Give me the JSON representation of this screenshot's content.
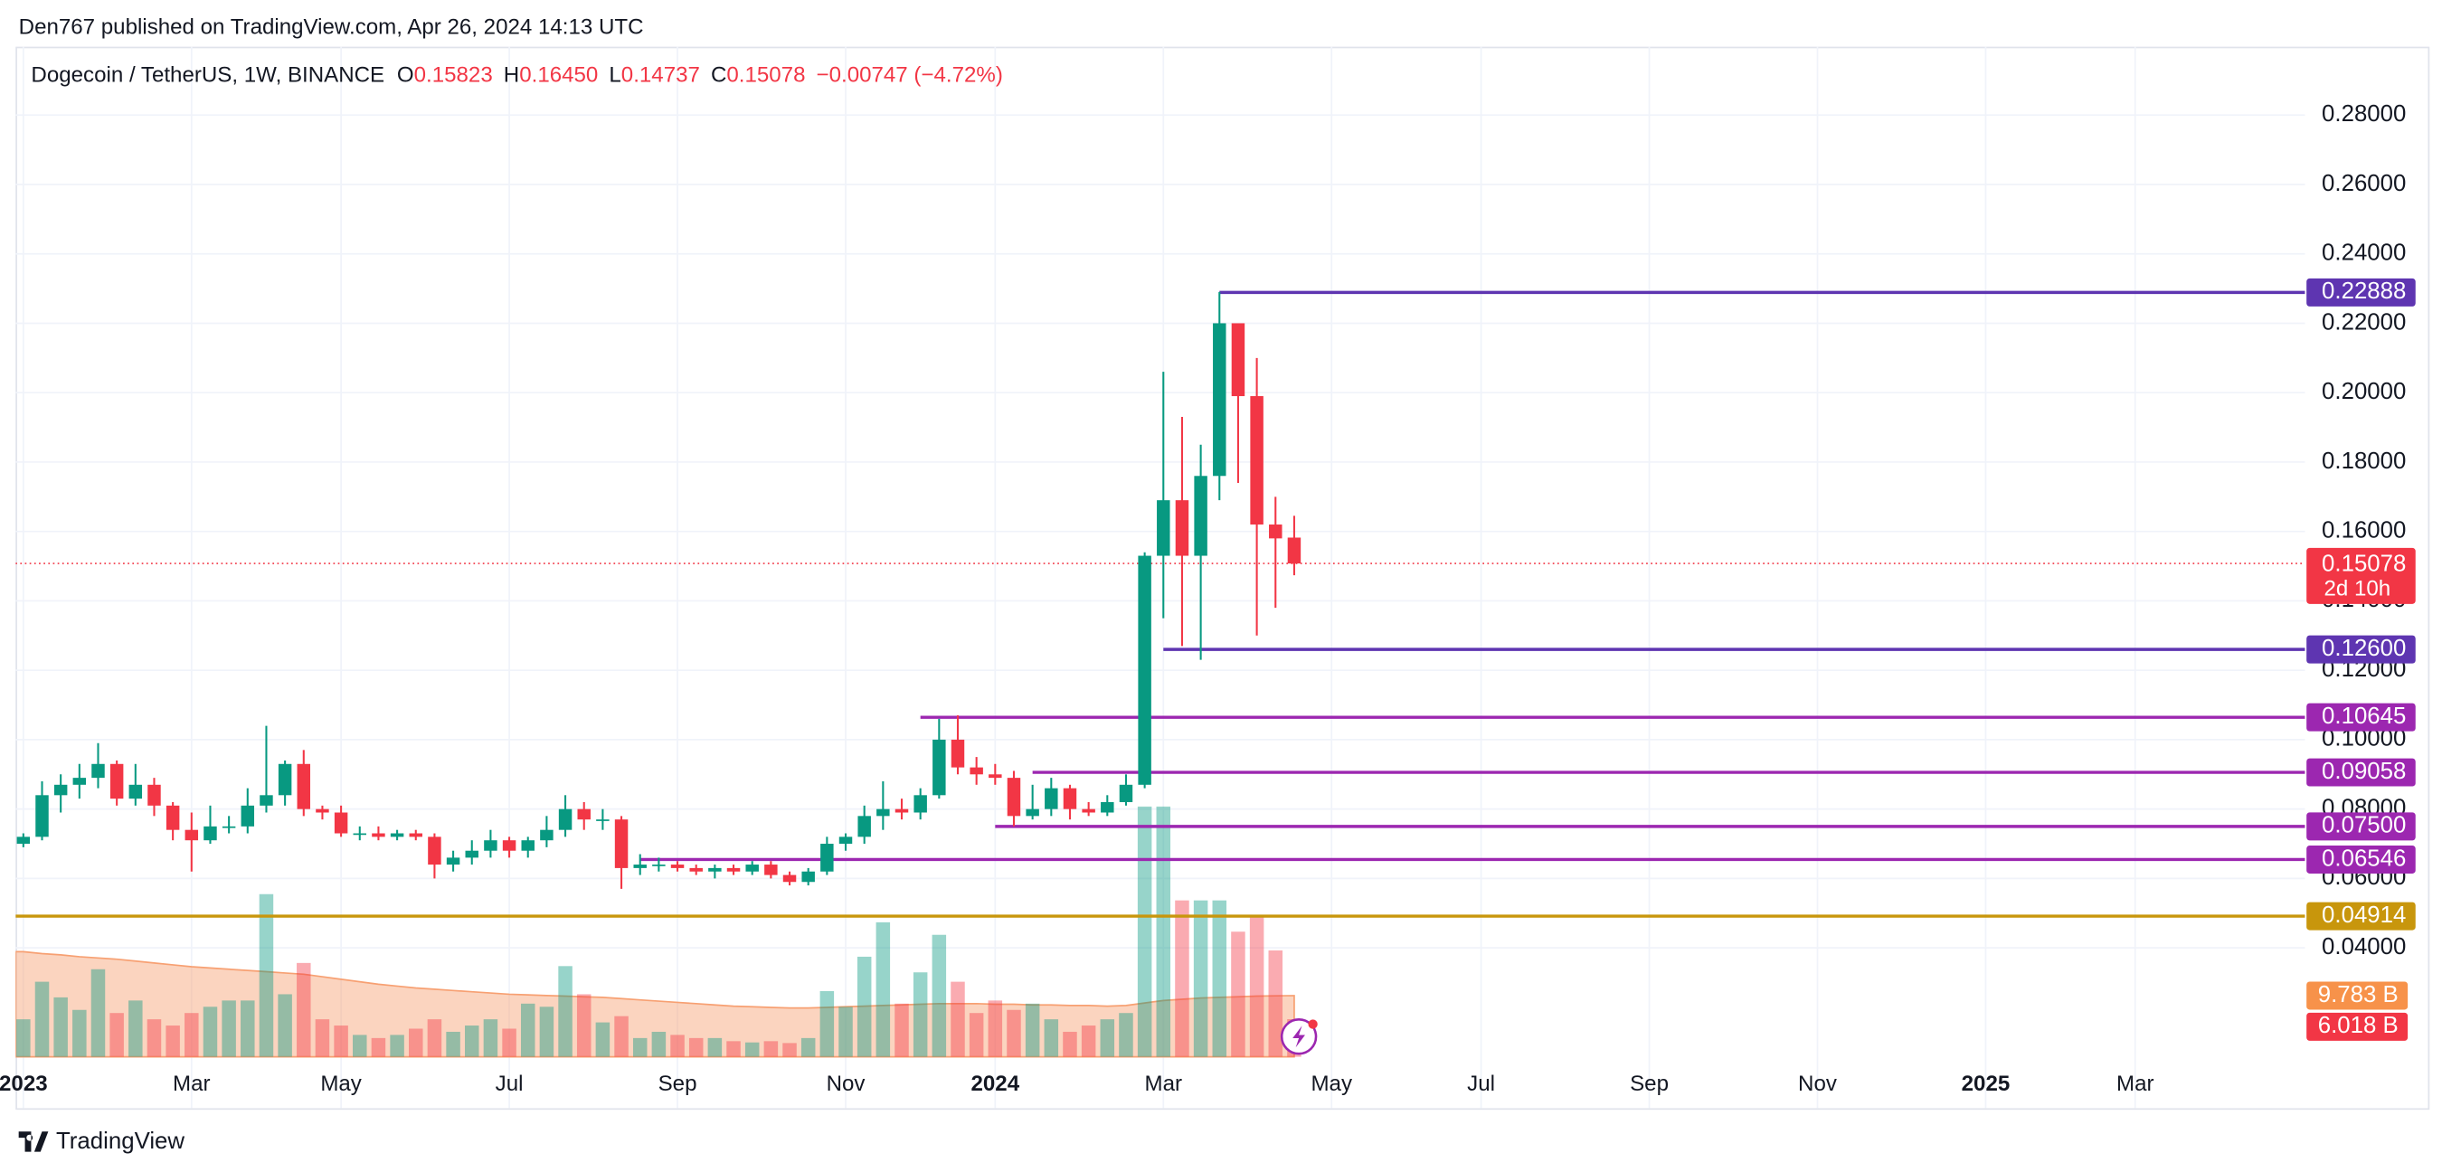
{
  "page": {
    "published": "Den767 published on TradingView.com, Apr 26, 2024 14:13 UTC",
    "brand": "TradingView"
  },
  "chart_data": {
    "type": "candlestick",
    "symbol": "Dogecoin / TetherUS, 1W, BINANCE",
    "ohlc": [
      {
        "key": "O",
        "value": "0.15823"
      },
      {
        "key": "H",
        "value": "0.16450"
      },
      {
        "key": "L",
        "value": "0.14737"
      },
      {
        "key": "C",
        "value": "0.15078"
      }
    ],
    "change": "−0.00747 (−4.72%)",
    "up_color": "#089981",
    "down_color": "#f23645",
    "categories": [
      "2023",
      null,
      null,
      null,
      null,
      null,
      null,
      null,
      null,
      "Mar",
      null,
      null,
      null,
      null,
      null,
      null,
      null,
      "May",
      null,
      null,
      null,
      null,
      null,
      null,
      null,
      null,
      "Jul",
      null,
      null,
      null,
      null,
      null,
      null,
      null,
      null,
      "Sep",
      null,
      null,
      null,
      null,
      null,
      null,
      null,
      null,
      "Nov",
      null,
      null,
      null,
      null,
      null,
      null,
      null,
      "2024",
      null,
      null,
      null,
      null,
      null,
      null,
      null,
      null,
      "Mar",
      null,
      null,
      null,
      null,
      null,
      null,
      null,
      null,
      "May",
      null,
      null,
      null,
      null,
      null,
      null,
      null,
      "Jul",
      null,
      null,
      null,
      null,
      null,
      null,
      null,
      null,
      "Sep",
      null,
      null,
      null,
      null,
      null,
      null,
      null,
      null,
      "Nov",
      null,
      null,
      null,
      null,
      null,
      null,
      null,
      null,
      "2025",
      null,
      null,
      null,
      null,
      null,
      null,
      null,
      "Mar",
      null,
      null,
      null,
      null,
      null
    ],
    "open": [
      0.07,
      0.072,
      0.084,
      0.087,
      0.089,
      0.093,
      0.083,
      0.087,
      0.081,
      0.074,
      0.071,
      0.075,
      0.075,
      0.081,
      0.084,
      0.093,
      0.08,
      0.079,
      0.073,
      0.073,
      0.072,
      0.073,
      0.072,
      0.064,
      0.066,
      0.068,
      0.071,
      0.068,
      0.071,
      0.074,
      0.08,
      0.077,
      0.077,
      0.063,
      0.064,
      0.064,
      0.063,
      0.062,
      0.063,
      0.062,
      0.064,
      0.061,
      0.059,
      0.062,
      0.07,
      0.072,
      0.078,
      0.08,
      0.079,
      0.084,
      0.1,
      0.092,
      0.09,
      0.089,
      0.078,
      0.08,
      0.086,
      0.08,
      0.079,
      0.082,
      0.087,
      0.153,
      0.169,
      0.153,
      0.176,
      0.22,
      0.199,
      0.162,
      0.15823,
      null,
      null,
      null,
      null,
      null,
      null,
      null,
      null,
      null,
      null,
      null,
      null,
      null,
      null,
      null,
      null,
      null,
      null,
      null,
      null,
      null,
      null,
      null,
      null,
      null,
      null,
      null,
      null,
      null,
      null,
      null,
      null,
      null,
      null,
      null,
      null,
      null,
      null,
      null,
      null,
      null,
      null,
      null,
      null,
      null,
      null,
      null,
      null,
      null,
      null
    ],
    "high": [
      0.073,
      0.088,
      0.09,
      0.093,
      0.099,
      0.094,
      0.093,
      0.089,
      0.082,
      0.079,
      0.081,
      0.078,
      0.086,
      0.104,
      0.094,
      0.097,
      0.081,
      0.081,
      0.075,
      0.075,
      0.074,
      0.074,
      0.073,
      0.068,
      0.071,
      0.074,
      0.072,
      0.072,
      0.078,
      0.084,
      0.082,
      0.08,
      0.078,
      0.067,
      0.066,
      0.065,
      0.064,
      0.064,
      0.064,
      0.065,
      0.065,
      0.062,
      0.063,
      0.072,
      0.073,
      0.081,
      0.088,
      0.083,
      0.086,
      0.106,
      0.107,
      0.095,
      0.093,
      0.091,
      0.087,
      0.089,
      0.087,
      0.082,
      0.084,
      0.09,
      0.154,
      0.206,
      0.193,
      0.185,
      0.229,
      0.22,
      0.21,
      0.17,
      0.1645,
      null,
      null,
      null,
      null,
      null,
      null,
      null,
      null,
      null,
      null,
      null,
      null,
      null,
      null,
      null,
      null,
      null,
      null,
      null,
      null,
      null,
      null,
      null,
      null,
      null,
      null,
      null,
      null,
      null,
      null,
      null,
      null,
      null,
      null,
      null,
      null,
      null,
      null,
      null,
      null,
      null,
      null,
      null,
      null,
      null,
      null,
      null,
      null,
      null,
      null
    ],
    "low": [
      0.069,
      0.071,
      0.079,
      0.083,
      0.086,
      0.081,
      0.081,
      0.078,
      0.071,
      0.062,
      0.07,
      0.073,
      0.073,
      0.079,
      0.081,
      0.078,
      0.077,
      0.072,
      0.071,
      0.071,
      0.071,
      0.071,
      0.06,
      0.062,
      0.064,
      0.066,
      0.066,
      0.066,
      0.069,
      0.072,
      0.074,
      0.074,
      0.057,
      0.061,
      0.062,
      0.062,
      0.061,
      0.06,
      0.061,
      0.061,
      0.06,
      0.058,
      0.058,
      0.061,
      0.068,
      0.07,
      0.074,
      0.077,
      0.077,
      0.083,
      0.09,
      0.087,
      0.087,
      0.075,
      0.077,
      0.078,
      0.077,
      0.078,
      0.078,
      0.081,
      0.086,
      0.135,
      0.127,
      0.123,
      0.169,
      0.174,
      0.13,
      0.138,
      0.14737,
      null,
      null,
      null,
      null,
      null,
      null,
      null,
      null,
      null,
      null,
      null,
      null,
      null,
      null,
      null,
      null,
      null,
      null,
      null,
      null,
      null,
      null,
      null,
      null,
      null,
      null,
      null,
      null,
      null,
      null,
      null,
      null,
      null,
      null,
      null,
      null,
      null,
      null,
      null,
      null,
      null,
      null,
      null,
      null,
      null,
      null,
      null,
      null,
      null,
      null
    ],
    "close": [
      0.072,
      0.084,
      0.087,
      0.089,
      0.093,
      0.083,
      0.087,
      0.081,
      0.074,
      0.071,
      0.075,
      0.075,
      0.081,
      0.084,
      0.093,
      0.08,
      0.079,
      0.073,
      0.073,
      0.072,
      0.073,
      0.072,
      0.064,
      0.066,
      0.068,
      0.071,
      0.068,
      0.071,
      0.074,
      0.08,
      0.077,
      0.077,
      0.063,
      0.064,
      0.064,
      0.063,
      0.062,
      0.063,
      0.062,
      0.064,
      0.061,
      0.059,
      0.062,
      0.07,
      0.072,
      0.078,
      0.08,
      0.079,
      0.084,
      0.1,
      0.092,
      0.09,
      0.089,
      0.078,
      0.08,
      0.086,
      0.08,
      0.079,
      0.082,
      0.087,
      0.153,
      0.169,
      0.153,
      0.176,
      0.22,
      0.199,
      0.162,
      0.158,
      0.15078,
      null,
      null,
      null,
      null,
      null,
      null,
      null,
      null,
      null,
      null,
      null,
      null,
      null,
      null,
      null,
      null,
      null,
      null,
      null,
      null,
      null,
      null,
      null,
      null,
      null,
      null,
      null,
      null,
      null,
      null,
      null,
      null,
      null,
      null,
      null,
      null,
      null,
      null,
      null,
      null,
      null,
      null,
      null,
      null,
      null,
      null,
      null,
      null,
      null,
      null
    ],
    "volume": [
      6,
      12,
      9.5,
      7.5,
      14,
      7,
      9,
      6,
      5,
      7,
      8,
      9,
      9,
      26,
      10,
      15,
      6,
      5,
      3.5,
      3,
      3.5,
      4.5,
      6,
      4,
      5,
      6,
      4.5,
      8.5,
      8,
      14.5,
      10,
      5.5,
      6.5,
      3,
      4,
      3.5,
      3,
      3,
      2.5,
      2.3,
      2.5,
      2.2,
      3,
      10.5,
      8,
      16,
      21.5,
      8.5,
      13.5,
      19.5,
      12,
      7,
      9,
      7.5,
      8.5,
      6,
      4,
      5,
      6,
      7,
      40,
      40,
      25,
      25,
      25,
      20,
      22.5,
      17,
      6.018,
      null,
      null,
      null,
      null,
      null,
      null,
      null,
      null,
      null,
      null,
      null,
      null,
      null,
      null,
      null,
      null,
      null,
      null,
      null,
      null,
      null,
      null,
      null,
      null,
      null,
      null,
      null,
      null,
      null,
      null,
      null,
      null,
      null,
      null,
      null,
      null,
      null,
      null,
      null,
      null,
      null,
      null,
      null,
      null,
      null,
      null,
      null,
      null,
      null,
      null
    ],
    "volume_ma": [
      16.8,
      16.5,
      16.3,
      16.0,
      15.8,
      15.6,
      15.3,
      15.0,
      14.7,
      14.4,
      14.2,
      14.0,
      13.8,
      13.6,
      13.4,
      13.2,
      12.8,
      12.4,
      12.0,
      11.6,
      11.3,
      11.0,
      10.8,
      10.6,
      10.4,
      10.2,
      10.0,
      9.9,
      9.8,
      9.7,
      9.6,
      9.5,
      9.3,
      9.1,
      8.9,
      8.7,
      8.5,
      8.3,
      8.1,
      8.0,
      7.9,
      7.8,
      7.8,
      7.9,
      8.0,
      8.1,
      8.2,
      8.3,
      8.4,
      8.5,
      8.5,
      8.5,
      8.4,
      8.4,
      8.3,
      8.3,
      8.2,
      8.2,
      8.1,
      8.2,
      8.6,
      9.0,
      9.2,
      9.4,
      9.5,
      9.6,
      9.7,
      9.75,
      9.783,
      null,
      null,
      null,
      null,
      null,
      null,
      null,
      null,
      null,
      null,
      null,
      null,
      null,
      null,
      null,
      null,
      null,
      null,
      null,
      null,
      null,
      null,
      null,
      null,
      null,
      null,
      null,
      null,
      null,
      null,
      null,
      null,
      null,
      null,
      null,
      null,
      null,
      null,
      null,
      null,
      null,
      null,
      null,
      null,
      null,
      null,
      null,
      null,
      null,
      null
    ],
    "volume_ma_label": {
      "value": 9.783,
      "label": "9.783 B"
    },
    "volume_label": {
      "value": 6.018,
      "label": "6.018 B"
    },
    "volume_ma_color": "#f7a072",
    "last_price": 0.15078,
    "countdown": "2d 10h",
    "ylim": [
      0.0086,
      0.2997
    ],
    "yticks": [
      {
        "value": 0.04,
        "label": "0.04000"
      },
      {
        "value": 0.06,
        "label": "0.06000"
      },
      {
        "value": 0.08,
        "label": "0.08000"
      },
      {
        "value": 0.1,
        "label": "0.10000"
      },
      {
        "value": 0.12,
        "label": "0.12000"
      },
      {
        "value": 0.14,
        "label": "0.14000"
      },
      {
        "value": 0.16,
        "label": "0.16000"
      },
      {
        "value": 0.18,
        "label": "0.18000"
      },
      {
        "value": 0.2,
        "label": "0.20000"
      },
      {
        "value": 0.22,
        "label": "0.22000"
      },
      {
        "value": 0.24,
        "label": "0.24000"
      },
      {
        "value": 0.26,
        "label": "0.26000"
      },
      {
        "value": 0.28,
        "label": "0.28000"
      }
    ],
    "grid": true,
    "levels": [
      {
        "value": 0.22888,
        "label": "0.22888",
        "color": "#5e35b1"
      },
      {
        "value": 0.126,
        "label": "0.12600",
        "color": "#5e35b1"
      },
      {
        "value": 0.10645,
        "label": "0.10645",
        "color": "#9c27b0"
      },
      {
        "value": 0.09058,
        "label": "0.09058",
        "color": "#9c27b0"
      },
      {
        "value": 0.075,
        "label": "0.07500",
        "color": "#9c27b0"
      },
      {
        "value": 0.06546,
        "label": "0.06546",
        "color": "#9c27b0"
      },
      {
        "value": 0.04914,
        "label": "0.04914",
        "color": "#c8960c"
      }
    ]
  }
}
